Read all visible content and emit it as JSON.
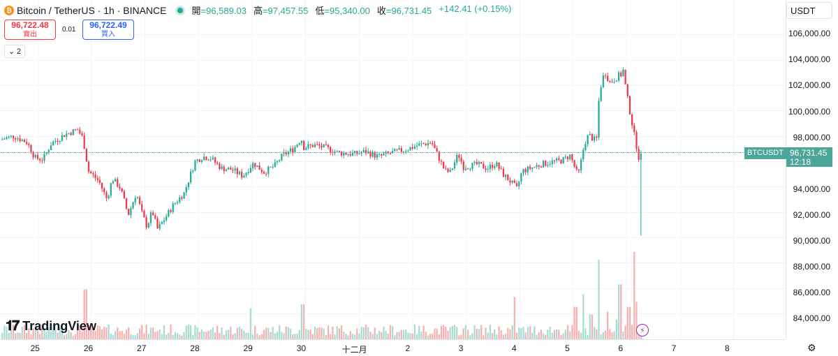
{
  "header": {
    "title": "Bitcoin / TetherUS · 1h · BINANCE",
    "open_label": "開",
    "open": "=96,589.03",
    "high_label": "高",
    "high": "=97,457.55",
    "low_label": "低",
    "low": "=95,340.00",
    "close_label": "收",
    "close": "=96,731.45",
    "change": "+142.41 (+0.15%)"
  },
  "trade": {
    "sell_price": "96,722.48",
    "sell_label": "賣出",
    "spread": "0.01",
    "buy_price": "96,722.49",
    "buy_label": "買入"
  },
  "indicators_collapse": "2",
  "currency": "USDT",
  "symbol": "BTCUSDT",
  "last_price": "96,731.45",
  "countdown": "12:18",
  "brand": "TradingView",
  "colors": {
    "up": "#22ab94",
    "down": "#f23645",
    "up_vol": "#a8dbd2",
    "down_vol": "#f7b0b0"
  },
  "chart_data": {
    "type": "candlestick",
    "interval": "1h",
    "y_ticks": [
      "106,000.00",
      "104,000.00",
      "102,000.00",
      "100,000.00",
      "98,000.00",
      "94,000.00",
      "92,000.00",
      "90,000.00",
      "88,000.00",
      "86,000.00",
      "84,000.00"
    ],
    "y_tick_values": [
      106000,
      104000,
      102000,
      100000,
      98000,
      94000,
      92000,
      90000,
      88000,
      86000,
      84000
    ],
    "ylim": [
      82400,
      108600
    ],
    "x_ticks": [
      "25",
      "26",
      "27",
      "28",
      "29",
      "30",
      "十二月",
      "2",
      "3",
      "4",
      "5",
      "6",
      "7",
      "8"
    ],
    "x_tick_days": [
      0,
      1,
      2,
      3,
      4,
      5,
      6,
      7,
      8,
      9,
      10,
      11,
      12,
      13
    ],
    "x_range_days": [
      -0.66,
      14.1
    ],
    "anchors": [
      [
        -0.66,
        97800
      ],
      [
        -0.4,
        98100
      ],
      [
        -0.15,
        97600
      ],
      [
        0.0,
        96400
      ],
      [
        0.15,
        96300
      ],
      [
        0.3,
        97500
      ],
      [
        0.55,
        98200
      ],
      [
        0.8,
        98600
      ],
      [
        0.9,
        97900
      ],
      [
        1.0,
        95400
      ],
      [
        1.2,
        94600
      ],
      [
        1.35,
        93200
      ],
      [
        1.45,
        94800
      ],
      [
        1.6,
        94100
      ],
      [
        1.75,
        92000
      ],
      [
        1.9,
        93700
      ],
      [
        2.0,
        92200
      ],
      [
        2.1,
        91100
      ],
      [
        2.2,
        92300
      ],
      [
        2.3,
        90900
      ],
      [
        2.45,
        91800
      ],
      [
        2.6,
        92800
      ],
      [
        2.8,
        93700
      ],
      [
        3.0,
        96100
      ],
      [
        3.15,
        96500
      ],
      [
        3.3,
        96400
      ],
      [
        3.5,
        95600
      ],
      [
        3.7,
        95500
      ],
      [
        3.9,
        95000
      ],
      [
        4.1,
        96000
      ],
      [
        4.3,
        95300
      ],
      [
        4.5,
        95800
      ],
      [
        4.65,
        96600
      ],
      [
        4.85,
        97100
      ],
      [
        5.0,
        97900
      ],
      [
        5.05,
        97200
      ],
      [
        5.25,
        97400
      ],
      [
        5.45,
        97200
      ],
      [
        5.7,
        96800
      ],
      [
        6.0,
        96700
      ],
      [
        6.2,
        96900
      ],
      [
        6.45,
        96500
      ],
      [
        6.7,
        96800
      ],
      [
        7.0,
        97100
      ],
      [
        7.2,
        97400
      ],
      [
        7.45,
        97600
      ],
      [
        7.55,
        96700
      ],
      [
        7.7,
        95400
      ],
      [
        7.8,
        95300
      ],
      [
        7.95,
        96700
      ],
      [
        8.05,
        95700
      ],
      [
        8.3,
        95900
      ],
      [
        8.5,
        95600
      ],
      [
        8.65,
        96000
      ],
      [
        8.8,
        95100
      ],
      [
        8.95,
        94500
      ],
      [
        9.05,
        94000
      ],
      [
        9.15,
        95400
      ],
      [
        9.3,
        95600
      ],
      [
        9.5,
        95900
      ],
      [
        9.7,
        96100
      ],
      [
        9.9,
        96200
      ],
      [
        10.05,
        96600
      ],
      [
        10.1,
        96100
      ],
      [
        10.2,
        95000
      ],
      [
        10.25,
        96000
      ],
      [
        10.32,
        97500
      ],
      [
        10.4,
        98200
      ],
      [
        10.5,
        97800
      ],
      [
        10.55,
        97900
      ],
      [
        10.6,
        101500
      ],
      [
        10.7,
        103100
      ],
      [
        10.8,
        102200
      ],
      [
        10.92,
        102600
      ],
      [
        11.0,
        102900
      ],
      [
        11.02,
        102700
      ],
      [
        11.04,
        103400
      ],
      [
        11.1,
        101700
      ],
      [
        11.15,
        100500
      ],
      [
        11.2,
        99400
      ],
      [
        11.25,
        98300
      ],
      [
        11.3,
        97300
      ],
      [
        11.33,
        96400
      ],
      [
        11.37,
        96731
      ]
    ],
    "volume_spikes": [
      [
        0.95,
        4000
      ],
      [
        4.05,
        2500
      ],
      [
        5.02,
        2800
      ],
      [
        9.0,
        3400
      ],
      [
        10.15,
        2600
      ],
      [
        10.3,
        3600
      ],
      [
        10.45,
        2000
      ],
      [
        10.58,
        6400
      ],
      [
        10.75,
        2200
      ],
      [
        10.95,
        1600
      ],
      [
        10.98,
        4400
      ],
      [
        11.15,
        2600
      ],
      [
        11.25,
        7000
      ],
      [
        11.3,
        3000
      ]
    ],
    "volume_max": 7000
  }
}
